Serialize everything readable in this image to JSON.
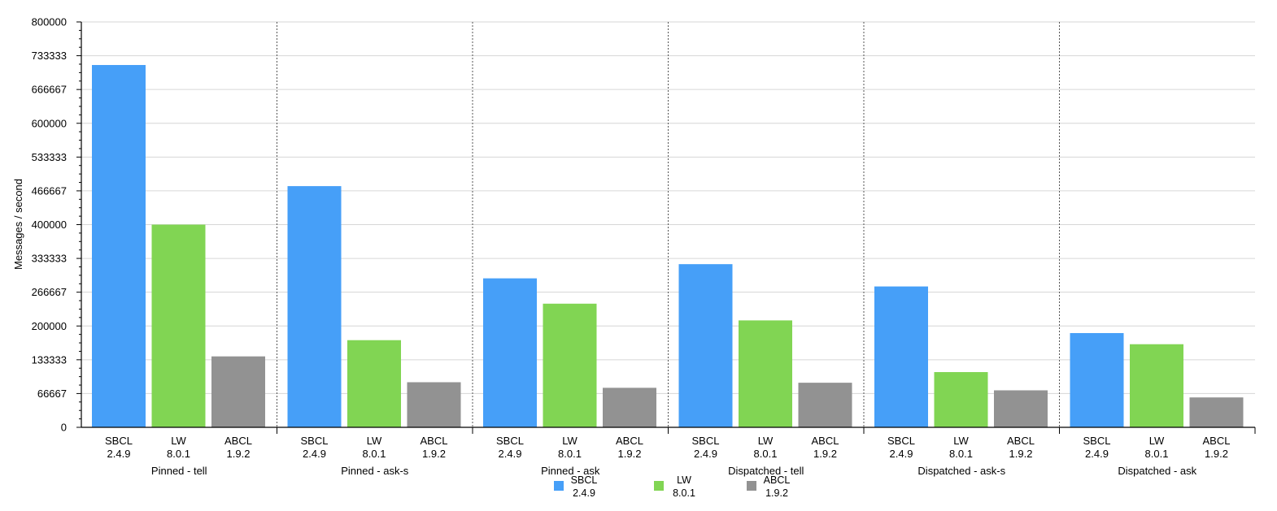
{
  "chart_data": {
    "type": "bar",
    "ylabel": "Messages / second",
    "ylim": [
      0,
      800000
    ],
    "yticks": [
      "0",
      "66667",
      "133333",
      "200000",
      "266667",
      "333333",
      "400000",
      "466667",
      "533333",
      "600000",
      "666667",
      "733333",
      "800000"
    ],
    "grid": true,
    "legend_position": "bottom",
    "groups": [
      "Pinned - tell",
      "Pinned - ask-s",
      "Pinned - ask",
      "Dispatched - tell",
      "Dispatched - ask-s",
      "Dispatched - ask"
    ],
    "series": [
      {
        "name": "SBCL",
        "version": "2.4.9",
        "color": "#469ff8",
        "values": [
          715000,
          476000,
          294000,
          322000,
          278000,
          186000
        ]
      },
      {
        "name": "LW",
        "version": "8.0.1",
        "color": "#81d553",
        "values": [
          400000,
          172000,
          244000,
          211000,
          109000,
          164000
        ]
      },
      {
        "name": "ABCL",
        "version": "1.9.2",
        "color": "#929292",
        "values": [
          140000,
          89000,
          78000,
          88000,
          73000,
          59000
        ]
      }
    ]
  }
}
